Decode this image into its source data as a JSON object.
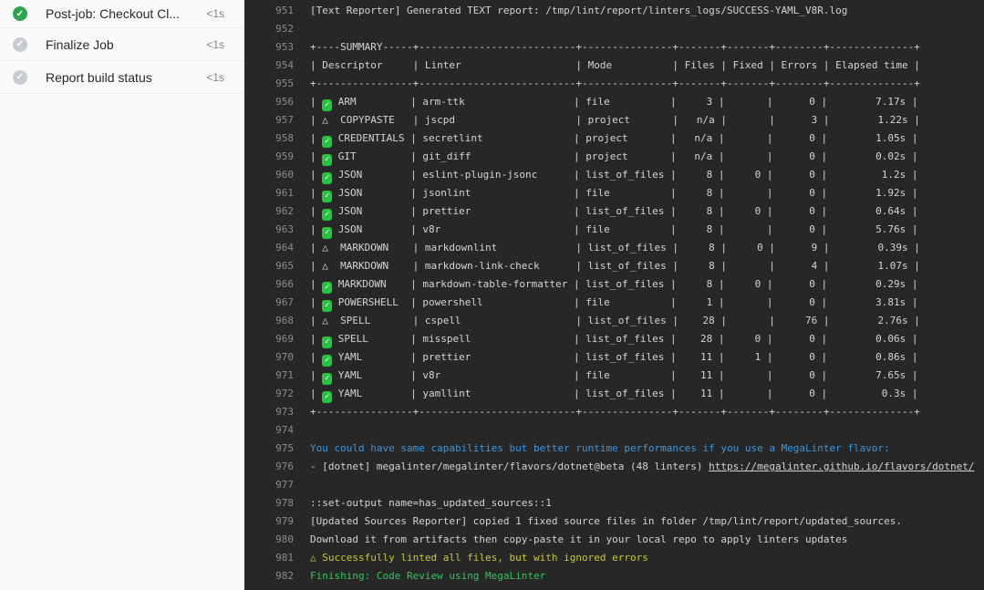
{
  "sidebar": {
    "steps": [
      {
        "label": "Post-job: Checkout Cl...",
        "duration": "<1s",
        "status": "success"
      },
      {
        "label": "Finalize Job",
        "duration": "<1s",
        "status": "done"
      },
      {
        "label": "Report build status",
        "duration": "<1s",
        "status": "done"
      }
    ]
  },
  "colors": {
    "log_background": "#272727",
    "log_text": "#d4d4d4",
    "line_number": "#8b8b8b",
    "info_blue": "#3b96dd",
    "warning_yellow": "#c6c838",
    "success_green": "#35c25e",
    "check_square_green": "#27c340",
    "sidebar_success_green": "#2da44e",
    "sidebar_done_gray": "#c8ccd1"
  },
  "log": {
    "lines": [
      {
        "n": "951",
        "t": "text",
        "text": "[Text Reporter] Generated TEXT report: /tmp/lint/report/linters_logs/SUCCESS-YAML_V8R.log"
      },
      {
        "n": "952",
        "t": "text",
        "text": ""
      },
      {
        "n": "953",
        "t": "text",
        "text": "+----SUMMARY-----+--------------------------+---------------+-------+-------+--------+--------------+"
      },
      {
        "n": "954",
        "t": "text",
        "text": "| Descriptor     | Linter                   | Mode          | Files | Fixed | Errors | Elapsed time |"
      },
      {
        "n": "955",
        "t": "text",
        "text": "+----------------+--------------------------+---------------+-------+-------+--------+--------------+"
      },
      {
        "n": "956",
        "t": "row",
        "status": "ok",
        "desc": "ARM",
        "linter": "arm-ttk",
        "mode": "file",
        "files": "3",
        "fixed": "",
        "errors": "0",
        "elapsed": "7.17s"
      },
      {
        "n": "957",
        "t": "row",
        "status": "warn",
        "desc": "COPYPASTE",
        "linter": "jscpd",
        "mode": "project",
        "files": "n/a",
        "fixed": "",
        "errors": "3",
        "elapsed": "1.22s"
      },
      {
        "n": "958",
        "t": "row",
        "status": "ok",
        "desc": "CREDENTIALS",
        "linter": "secretlint",
        "mode": "project",
        "files": "n/a",
        "fixed": "",
        "errors": "0",
        "elapsed": "1.05s"
      },
      {
        "n": "959",
        "t": "row",
        "status": "ok",
        "desc": "GIT",
        "linter": "git_diff",
        "mode": "project",
        "files": "n/a",
        "fixed": "",
        "errors": "0",
        "elapsed": "0.02s"
      },
      {
        "n": "960",
        "t": "row",
        "status": "ok",
        "desc": "JSON",
        "linter": "eslint-plugin-jsonc",
        "mode": "list_of_files",
        "files": "8",
        "fixed": "0",
        "errors": "0",
        "elapsed": "1.2s"
      },
      {
        "n": "961",
        "t": "row",
        "status": "ok",
        "desc": "JSON",
        "linter": "jsonlint",
        "mode": "file",
        "files": "8",
        "fixed": "",
        "errors": "0",
        "elapsed": "1.92s"
      },
      {
        "n": "962",
        "t": "row",
        "status": "ok",
        "desc": "JSON",
        "linter": "prettier",
        "mode": "list_of_files",
        "files": "8",
        "fixed": "0",
        "errors": "0",
        "elapsed": "0.64s"
      },
      {
        "n": "963",
        "t": "row",
        "status": "ok",
        "desc": "JSON",
        "linter": "v8r",
        "mode": "file",
        "files": "8",
        "fixed": "",
        "errors": "0",
        "elapsed": "5.76s"
      },
      {
        "n": "964",
        "t": "row",
        "status": "warn",
        "desc": "MARKDOWN",
        "linter": "markdownlint",
        "mode": "list_of_files",
        "files": "8",
        "fixed": "0",
        "errors": "9",
        "elapsed": "0.39s"
      },
      {
        "n": "965",
        "t": "row",
        "status": "warn",
        "desc": "MARKDOWN",
        "linter": "markdown-link-check",
        "mode": "list_of_files",
        "files": "8",
        "fixed": "",
        "errors": "4",
        "elapsed": "1.07s"
      },
      {
        "n": "966",
        "t": "row",
        "status": "ok",
        "desc": "MARKDOWN",
        "linter": "markdown-table-formatter",
        "mode": "list_of_files",
        "files": "8",
        "fixed": "0",
        "errors": "0",
        "elapsed": "0.29s"
      },
      {
        "n": "967",
        "t": "row",
        "status": "ok",
        "desc": "POWERSHELL",
        "linter": "powershell",
        "mode": "file",
        "files": "1",
        "fixed": "",
        "errors": "0",
        "elapsed": "3.81s"
      },
      {
        "n": "968",
        "t": "row",
        "status": "warn",
        "desc": "SPELL",
        "linter": "cspell",
        "mode": "list_of_files",
        "files": "28",
        "fixed": "",
        "errors": "76",
        "elapsed": "2.76s"
      },
      {
        "n": "969",
        "t": "row",
        "status": "ok",
        "desc": "SPELL",
        "linter": "misspell",
        "mode": "list_of_files",
        "files": "28",
        "fixed": "0",
        "errors": "0",
        "elapsed": "0.06s"
      },
      {
        "n": "970",
        "t": "row",
        "status": "ok",
        "desc": "YAML",
        "linter": "prettier",
        "mode": "list_of_files",
        "files": "11",
        "fixed": "1",
        "errors": "0",
        "elapsed": "0.86s"
      },
      {
        "n": "971",
        "t": "row",
        "status": "ok",
        "desc": "YAML",
        "linter": "v8r",
        "mode": "file",
        "files": "11",
        "fixed": "",
        "errors": "0",
        "elapsed": "7.65s"
      },
      {
        "n": "972",
        "t": "row",
        "status": "ok",
        "desc": "YAML",
        "linter": "yamllint",
        "mode": "list_of_files",
        "files": "11",
        "fixed": "",
        "errors": "0",
        "elapsed": "0.3s"
      },
      {
        "n": "973",
        "t": "text",
        "text": "+----------------+--------------------------+---------------+-------+-------+--------+--------------+"
      },
      {
        "n": "974",
        "t": "text",
        "text": ""
      },
      {
        "n": "975",
        "t": "text",
        "color": "info",
        "text": "You could have same capabilities but better runtime performances if you use a MegaLinter flavor:"
      },
      {
        "n": "976",
        "t": "link",
        "text": "- [dotnet] megalinter/megalinter/flavors/dotnet@beta (48 linters) ",
        "link": "https://megalinter.github.io/flavors/dotnet/"
      },
      {
        "n": "977",
        "t": "text",
        "text": ""
      },
      {
        "n": "978",
        "t": "text",
        "text": "::set-output name=has_updated_sources::1"
      },
      {
        "n": "979",
        "t": "text",
        "text": "[Updated Sources Reporter] copied 1 fixed source files in folder /tmp/lint/report/updated_sources."
      },
      {
        "n": "980",
        "t": "text",
        "text": "Download it from artifacts then copy-paste it in your local repo to apply linters updates"
      },
      {
        "n": "981",
        "t": "text",
        "color": "warn",
        "text": "△ Successfully linted all files, but with ignored errors"
      },
      {
        "n": "982",
        "t": "text",
        "color": "success",
        "text": "Finishing: Code Review using MegaLinter"
      }
    ]
  }
}
